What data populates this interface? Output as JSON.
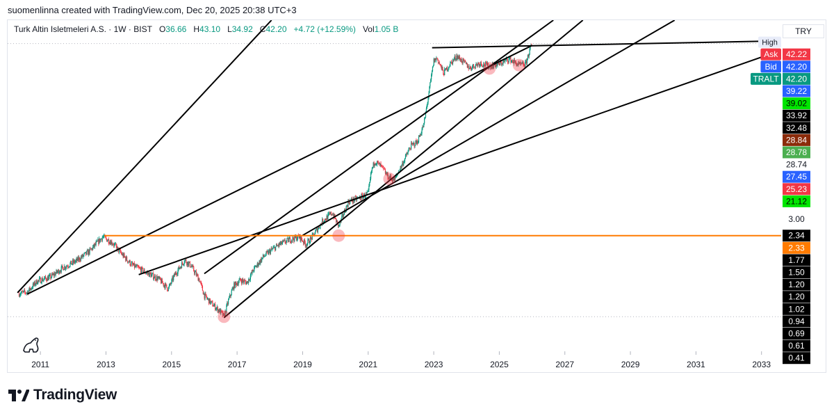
{
  "topline": "suomenlinna created with TradingView.com, Dec 20, 2025 20:38 UTC+3",
  "legend": {
    "name": "Turk Altin Isletmeleri A.S. · 1W · BIST",
    "o_label": "O",
    "o": "36.66",
    "h_label": "H",
    "h": "43.10",
    "l_label": "L",
    "l": "34.92",
    "c_label": "C",
    "c": "42.20",
    "change": "+4.72 (+12.59%)",
    "vol_label": "Vol",
    "vol": "1.05 B"
  },
  "currency": "TRY",
  "brand": "TradingView",
  "chart_data": {
    "type": "candlestick",
    "title": "Turk Altin Isletmeleri A.S. · 1W · BIST",
    "scale": "log",
    "ylim": [
      0.41,
      60
    ],
    "xlim": [
      2010.0,
      2033.6
    ],
    "x_ticks": [
      "2011",
      "2013",
      "2015",
      "2017",
      "2019",
      "2021",
      "2023",
      "2025",
      "2027",
      "2029",
      "2031",
      "2033"
    ],
    "price_path": [
      [
        2010.35,
        0.98
      ],
      [
        2010.6,
        1.0
      ],
      [
        2010.9,
        1.18
      ],
      [
        2011.3,
        1.25
      ],
      [
        2011.7,
        1.45
      ],
      [
        2012.1,
        1.6
      ],
      [
        2012.5,
        1.85
      ],
      [
        2012.9,
        2.3
      ],
      [
        2013.2,
        2.1
      ],
      [
        2013.5,
        1.75
      ],
      [
        2013.8,
        1.5
      ],
      [
        2014.2,
        1.35
      ],
      [
        2014.6,
        1.22
      ],
      [
        2014.9,
        1.05
      ],
      [
        2015.1,
        1.3
      ],
      [
        2015.4,
        1.62
      ],
      [
        2015.6,
        1.48
      ],
      [
        2015.85,
        1.2
      ],
      [
        2016.0,
        0.95
      ],
      [
        2016.2,
        0.85
      ],
      [
        2016.5,
        0.74
      ],
      [
        2016.6,
        0.69
      ],
      [
        2016.75,
        0.9
      ],
      [
        2016.9,
        1.1
      ],
      [
        2017.1,
        1.2
      ],
      [
        2017.3,
        1.15
      ],
      [
        2017.5,
        1.4
      ],
      [
        2017.8,
        1.7
      ],
      [
        2018.0,
        1.85
      ],
      [
        2018.3,
        2.05
      ],
      [
        2018.6,
        2.2
      ],
      [
        2018.9,
        2.3
      ],
      [
        2019.1,
        2.05
      ],
      [
        2019.3,
        2.3
      ],
      [
        2019.6,
        2.9
      ],
      [
        2019.9,
        3.3
      ],
      [
        2020.1,
        2.7
      ],
      [
        2020.4,
        3.9
      ],
      [
        2020.7,
        4.1
      ],
      [
        2021.0,
        4.4
      ],
      [
        2021.1,
        6.2
      ],
      [
        2021.2,
        7.2
      ],
      [
        2021.4,
        6.6
      ],
      [
        2021.6,
        5.7
      ],
      [
        2021.8,
        5.4
      ],
      [
        2022.0,
        6.6
      ],
      [
        2022.3,
        9.0
      ],
      [
        2022.5,
        9.6
      ],
      [
        2022.7,
        12.5
      ],
      [
        2022.85,
        20.0
      ],
      [
        2023.0,
        32.5
      ],
      [
        2023.1,
        33.9
      ],
      [
        2023.3,
        27.0
      ],
      [
        2023.5,
        31.0
      ],
      [
        2023.7,
        35.0
      ],
      [
        2023.9,
        32.0
      ],
      [
        2024.1,
        29.2
      ],
      [
        2024.4,
        31.5
      ],
      [
        2024.7,
        30.0
      ],
      [
        2025.0,
        31.0
      ],
      [
        2025.3,
        33.5
      ],
      [
        2025.6,
        30.5
      ],
      [
        2025.8,
        30.8
      ],
      [
        2025.9,
        36.5
      ],
      [
        2026.0,
        42.2
      ]
    ],
    "trendlines": [
      {
        "x1": 2010.3,
        "y1": 0.99,
        "x2": 2018.05,
        "y2": 60
      },
      {
        "x1": 2010.6,
        "y1": 0.97,
        "x2": 2026.0,
        "y2": 41.0
      },
      {
        "x1": 2014.0,
        "y1": 1.3,
        "x2": 2033.8,
        "y2": 39.5
      },
      {
        "x1": 2016.0,
        "y1": 1.32,
        "x2": 2026.65,
        "y2": 60
      },
      {
        "x1": 2016.6,
        "y1": 0.68,
        "x2": 2027.55,
        "y2": 60
      },
      {
        "x1": 2019.0,
        "y1": 2.35,
        "x2": 2030.35,
        "y2": 60
      },
      {
        "x1": 2022.95,
        "y1": 39.6,
        "x2": 2033.8,
        "y2": 44.0
      }
    ],
    "horizontal_line": {
      "value": 2.34,
      "from": 2012.95
    },
    "dotted_lines": [
      42.2,
      0.69
    ],
    "markers": [
      {
        "x": 2016.6,
        "y": 0.69
      },
      {
        "x": 2020.1,
        "y": 2.34
      },
      {
        "x": 2021.65,
        "y": 5.5
      },
      {
        "x": 2024.7,
        "y": 29.0
      },
      {
        "x": 2025.6,
        "y": 30.5
      }
    ],
    "price_labels": [
      {
        "text": "High",
        "value": 43.1,
        "bg": "#e8ecf9",
        "fg": "#131722",
        "tag": true
      },
      {
        "text": "42.22",
        "value": 42.22,
        "bg": "#f23645",
        "fg": "#ffffff",
        "prefix": "Ask",
        "prefix_bg": "#f23645"
      },
      {
        "text": "42.20",
        "value": 42.2,
        "bg": "#2962ff",
        "fg": "#ffffff",
        "prefix": "Bid",
        "prefix_bg": "#2962ff"
      },
      {
        "text": "42.20",
        "value": 42.2,
        "bg": "#089981",
        "fg": "#ffffff",
        "prefix": "TRALT",
        "prefix_bg": "#089981"
      },
      {
        "text": "39.22",
        "value": 39.22,
        "bg": "#2962ff",
        "fg": "#ffffff"
      },
      {
        "text": "39.02",
        "value": 39.02,
        "bg": "#00e600",
        "fg": "#000000"
      },
      {
        "text": "33.92",
        "value": 33.92,
        "bg": "#000000",
        "fg": "#ffffff"
      },
      {
        "text": "32.48",
        "value": 32.48,
        "bg": "#000000",
        "fg": "#ffffff"
      },
      {
        "text": "28.84",
        "value": 28.84,
        "bg": "#8b2b0a",
        "fg": "#ffffff"
      },
      {
        "text": "28.78",
        "value": 28.78,
        "bg": "#4caf50",
        "fg": "#ffffff"
      },
      {
        "text": "28.74",
        "value": 28.74,
        "bg": "#ffffff",
        "fg": "#131722"
      },
      {
        "text": "27.45",
        "value": 27.45,
        "bg": "#2962ff",
        "fg": "#ffffff"
      },
      {
        "text": "25.23",
        "value": 25.23,
        "bg": "#f23645",
        "fg": "#ffffff"
      },
      {
        "text": "21.12",
        "value": 21.12,
        "bg": "#00e600",
        "fg": "#000000"
      },
      {
        "text": "3.00",
        "value": 3.0,
        "bg": "#ffffff",
        "fg": "#131722"
      },
      {
        "text": "2.34",
        "value": 2.34,
        "bg": "#000000",
        "fg": "#ffffff"
      },
      {
        "text": "2.33",
        "value": 2.33,
        "bg": "#ff7b00",
        "fg": "#ffffff"
      },
      {
        "text": "1.77",
        "value": 1.77,
        "bg": "#000000",
        "fg": "#ffffff"
      },
      {
        "text": "1.50",
        "value": 1.5,
        "bg": "#000000",
        "fg": "#ffffff"
      },
      {
        "text": "1.20",
        "value": 1.2,
        "bg": "#000000",
        "fg": "#ffffff"
      },
      {
        "text": "1.20",
        "value": 1.2,
        "bg": "#000000",
        "fg": "#ffffff"
      },
      {
        "text": "1.02",
        "value": 1.02,
        "bg": "#000000",
        "fg": "#ffffff"
      },
      {
        "text": "0.94",
        "value": 0.94,
        "bg": "#000000",
        "fg": "#ffffff"
      },
      {
        "text": "0.69",
        "value": 0.69,
        "bg": "#000000",
        "fg": "#ffffff"
      },
      {
        "text": "0.61",
        "value": 0.61,
        "bg": "#000000",
        "fg": "#ffffff"
      },
      {
        "text": "0.41",
        "value": 0.41,
        "bg": "#000000",
        "fg": "#ffffff"
      }
    ],
    "colors": {
      "up": "#089981",
      "down": "#f23645",
      "trendline": "#000000",
      "hline": "#ff7b00",
      "marker": "#f23645"
    }
  }
}
